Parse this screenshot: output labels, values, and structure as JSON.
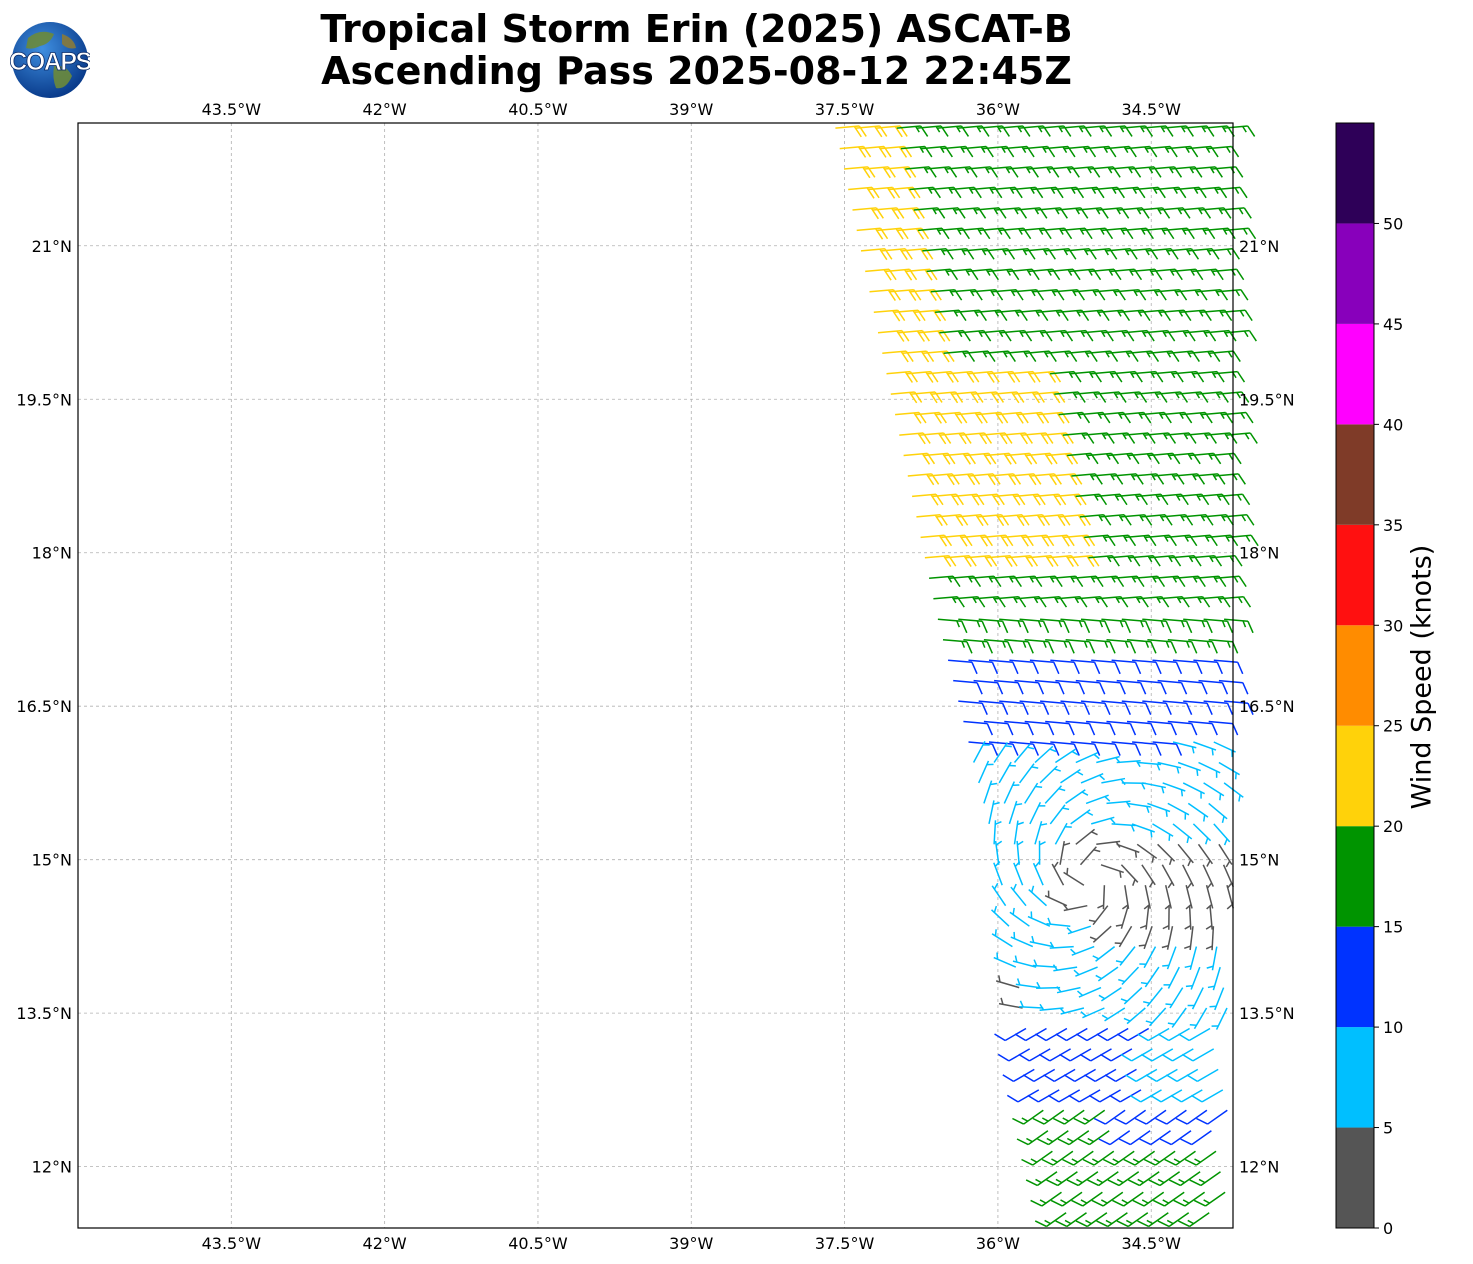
{
  "title": {
    "line1": "Tropical Storm Erin (2025) ASCAT-B",
    "line2": "Ascending Pass 2025-08-12 22:45Z"
  },
  "logo": {
    "text": "COAPS",
    "icon": "globe-icon"
  },
  "colors": {
    "ws_0_5": "#555555",
    "ws_5_10": "#00bfff",
    "ws_10_15": "#0033ff",
    "ws_15_20": "#009400",
    "ws_20_25": "#ffd20a",
    "ws_25_30": "#ff8c00",
    "ws_30_35": "#ff1010",
    "ws_35_40": "#7f3b28",
    "ws_40_45": "#ff00ff",
    "ws_45_50": "#8800bb",
    "ws_50_plus": "#2e0058"
  },
  "chart_data": {
    "type": "wind-barb-map",
    "title": "Tropical Storm Erin (2025) ASCAT-B Ascending Pass 2025-08-12 22:45Z",
    "lon_range": [
      -45.0,
      -33.7
    ],
    "lat_range": [
      11.4,
      22.2
    ],
    "x_ticks": [
      "43.5°W",
      "42°W",
      "40.5°W",
      "39°W",
      "37.5°W",
      "36°W",
      "34.5°W"
    ],
    "x_tick_values": [
      -43.5,
      -42.0,
      -40.5,
      -39.0,
      -37.5,
      -36.0,
      -34.5
    ],
    "y_ticks": [
      "12°N",
      "13.5°N",
      "15°N",
      "16.5°N",
      "18°N",
      "19.5°N",
      "21°N"
    ],
    "y_tick_values": [
      12.0,
      13.5,
      15.0,
      16.5,
      18.0,
      19.5,
      21.0
    ],
    "colorbar": {
      "label": "Wind Speed (knots)",
      "bounds": [
        0,
        5,
        10,
        15,
        20,
        25,
        30,
        35,
        40,
        45,
        50,
        55
      ],
      "tick_labels": [
        "0",
        "5",
        "10",
        "15",
        "20",
        "25",
        "30",
        "35",
        "40",
        "45",
        "50"
      ]
    },
    "swath": {
      "west_edge": [
        [
          -37.6,
          22.2
        ],
        [
          -36.6,
          17.4
        ],
        [
          -36.0,
          15.0
        ],
        [
          -35.7,
          13.2
        ],
        [
          -35.3,
          11.4
        ]
      ],
      "east_edge_lon": -33.7
    },
    "wind_regions": [
      {
        "description": "northern swath",
        "lat_range": [
          17.6,
          22.2
        ],
        "speed_kt": 17,
        "direction_from_deg": 85
      },
      {
        "description": "yellow band near west edge",
        "lat_range": [
          17.8,
          22.0
        ],
        "speed_kt": 22,
        "direction_from_deg": 85
      },
      {
        "description": "blue band",
        "lat_range": [
          16.0,
          17.3
        ],
        "speed_kt": 12,
        "direction_from_deg": 95
      },
      {
        "description": "circulation cyan",
        "lat_range": [
          13.3,
          16.0
        ],
        "speed_kt": 7,
        "direction_from_deg": 200
      },
      {
        "description": "calm center",
        "lat_range": [
          14.4,
          15.1
        ],
        "speed_kt": 3,
        "direction_from_deg": 180
      },
      {
        "description": "southern blue",
        "lat_range": [
          12.3,
          13.4
        ],
        "speed_kt": 12,
        "direction_from_deg": 240
      },
      {
        "description": "southern green",
        "lat_range": [
          11.4,
          12.6
        ],
        "speed_kt": 17,
        "direction_from_deg": 240
      }
    ],
    "circulation_center": {
      "lon": -35.1,
      "lat": 14.8
    }
  }
}
